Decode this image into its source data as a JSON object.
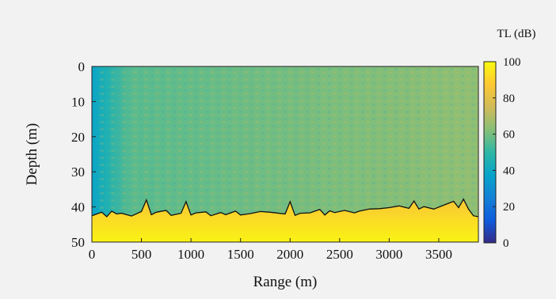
{
  "chart_data": {
    "type": "heatmap",
    "title": "",
    "xlabel": "Range (m)",
    "ylabel": "Depth (m)",
    "xlim": [
      0,
      3900
    ],
    "ylim": [
      0,
      50
    ],
    "y_reversed": true,
    "xticks": [
      0,
      500,
      1000,
      1500,
      2000,
      2500,
      3000,
      3500
    ],
    "yticks": [
      0,
      10,
      20,
      30,
      40,
      50
    ],
    "colorbar": {
      "label": "TL (dB)",
      "min": 0,
      "max": 100,
      "ticks": [
        0,
        20,
        40,
        60,
        80,
        100
      ],
      "colormap": "parula",
      "colors": [
        "#352a87",
        "#0f5cdd",
        "#1481d6",
        "#06a4ca",
        "#2eb7a4",
        "#87bf77",
        "#d1bb59",
        "#fec832",
        "#f9fb0e"
      ]
    },
    "tl_field_summary": {
      "near_source_tl_db": 38,
      "water_column_tl_db": 60,
      "seabed_tl_db": 92
    },
    "seabed_line": {
      "color": "#111111",
      "range_m": [
        0,
        100,
        150,
        200,
        250,
        300,
        400,
        500,
        550,
        600,
        650,
        750,
        800,
        900,
        950,
        1000,
        1050,
        1150,
        1200,
        1300,
        1350,
        1450,
        1500,
        1600,
        1700,
        1800,
        1950,
        2000,
        2050,
        2100,
        2200,
        2300,
        2350,
        2400,
        2450,
        2550,
        2650,
        2700,
        2800,
        2900,
        3000,
        3100,
        3200,
        3250,
        3300,
        3350,
        3450,
        3550,
        3650,
        3700,
        3750,
        3800,
        3850,
        3900
      ],
      "depth_m": [
        42.5,
        41.5,
        42.8,
        41.2,
        42.0,
        41.8,
        42.6,
        41.3,
        38.0,
        42.2,
        41.5,
        41.0,
        42.4,
        41.8,
        38.5,
        42.3,
        41.7,
        41.4,
        42.5,
        41.6,
        42.2,
        41.2,
        42.3,
        41.9,
        41.3,
        41.5,
        42.0,
        38.5,
        42.4,
        41.8,
        41.7,
        40.7,
        42.3,
        41.1,
        41.6,
        41.0,
        41.7,
        41.2,
        40.6,
        40.5,
        40.2,
        39.7,
        40.4,
        38.3,
        40.6,
        39.9,
        40.6,
        39.5,
        38.4,
        40.2,
        37.8,
        40.6,
        42.5,
        42.8
      ]
    }
  }
}
